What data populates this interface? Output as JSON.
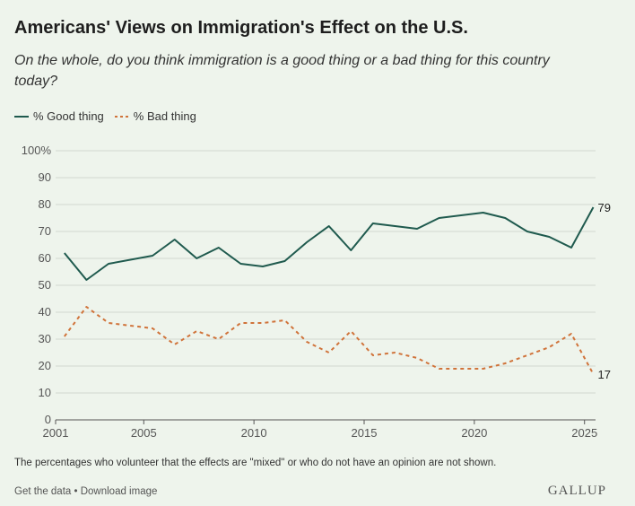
{
  "header": {
    "title": "Americans' Views on Immigration's Effect on the U.S.",
    "subtitle": "On the whole, do you think immigration is a good thing or a bad thing for this country today?"
  },
  "legend": {
    "good_label": "% Good thing",
    "bad_label": "% Bad thing"
  },
  "colors": {
    "good": "#1f5a4e",
    "bad": "#d0733a",
    "grid": "#d2d8d0",
    "axis": "#555555",
    "background": "#eef4ec"
  },
  "chart_data": {
    "type": "line",
    "title": "Americans' Views on Immigration's Effect on the U.S.",
    "subtitle": "On the whole, do you think immigration is a good thing or a bad thing for this country today?",
    "xlabel": "",
    "ylabel": "",
    "xlim": [
      2001,
      2025.5
    ],
    "ylim": [
      0,
      100
    ],
    "y_ticks": [
      "0",
      "10",
      "20",
      "30",
      "40",
      "50",
      "60",
      "70",
      "80",
      "90",
      "100%"
    ],
    "y_tick_values": [
      0,
      10,
      20,
      30,
      40,
      50,
      60,
      70,
      80,
      90,
      100
    ],
    "x_ticks": [
      "2001",
      "2005",
      "2010",
      "2015",
      "2020",
      "2025"
    ],
    "x_tick_values": [
      2001,
      2005,
      2010,
      2015,
      2020,
      2025
    ],
    "grid": true,
    "legend_position": "top-left",
    "series": [
      {
        "name": "% Good thing",
        "style": "solid",
        "x": [
          2001.4,
          2002.4,
          2003.4,
          2005.4,
          2006.4,
          2007.4,
          2008.4,
          2009.4,
          2010.4,
          2011.4,
          2012.4,
          2013.4,
          2014.4,
          2015.4,
          2016.4,
          2017.4,
          2018.4,
          2019.4,
          2020.4,
          2021.4,
          2022.4,
          2023.4,
          2024.4,
          2025.4
        ],
        "values": [
          62,
          52,
          58,
          61,
          67,
          60,
          64,
          58,
          57,
          59,
          66,
          72,
          63,
          73,
          72,
          71,
          75,
          76,
          77,
          75,
          70,
          68,
          64,
          79
        ],
        "end_label": "79"
      },
      {
        "name": "% Bad thing",
        "style": "dashed",
        "x": [
          2001.4,
          2002.4,
          2003.4,
          2005.4,
          2006.4,
          2007.4,
          2008.4,
          2009.4,
          2010.4,
          2011.4,
          2012.4,
          2013.4,
          2014.4,
          2015.4,
          2016.4,
          2017.4,
          2018.4,
          2019.4,
          2020.4,
          2021.4,
          2022.4,
          2023.4,
          2024.4,
          2025.4
        ],
        "values": [
          31,
          42,
          36,
          34,
          28,
          33,
          30,
          36,
          36,
          37,
          29,
          25,
          33,
          24,
          25,
          23,
          19,
          19,
          19,
          21,
          24,
          27,
          32,
          17
        ],
        "end_label": "17"
      }
    ]
  },
  "note": "The percentages who volunteer that the effects are \"mixed\" or who do not have an opinion are not shown.",
  "footer": {
    "get_data": "Get the data",
    "separator": " • ",
    "download": "Download image",
    "brand": "GALLUP"
  }
}
